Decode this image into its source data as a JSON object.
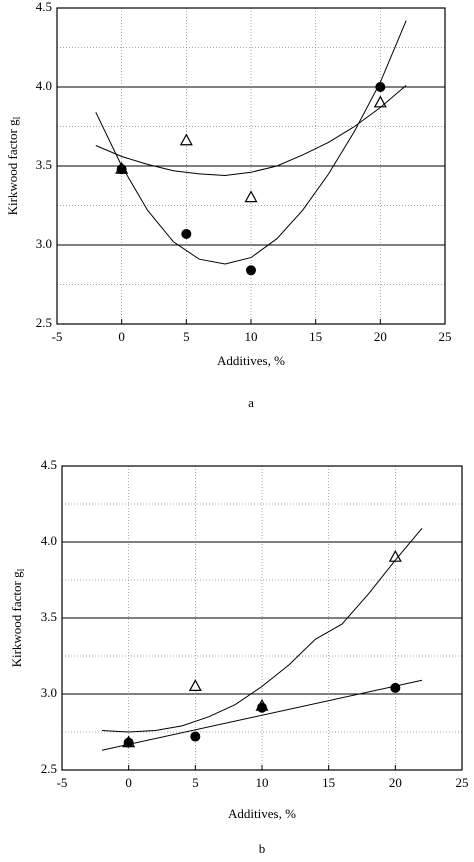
{
  "chart_data": [
    {
      "type": "scatter",
      "xlabel": "Additives, %",
      "ylabel": "Kirkwood factor g",
      "ylabel_sub": "l",
      "caption": "a",
      "xlim": [
        -5,
        25
      ],
      "xticks": [
        -5,
        0,
        5,
        10,
        15,
        20,
        25
      ],
      "ylim": [
        2.5,
        4.5
      ],
      "yticks": [
        2.5,
        {
          "value": 3,
          "label": "3.0"
        },
        3.5,
        {
          "value": 4,
          "label": "4.0"
        },
        4.5
      ],
      "grid": true,
      "series": [
        {
          "marker": "triangle",
          "color": "#000000",
          "x": [
            0,
            5,
            10,
            20
          ],
          "values": [
            3.48,
            3.66,
            3.3,
            3.9
          ]
        },
        {
          "marker": "circle",
          "color": "#000000",
          "x": [
            0,
            5,
            10,
            20
          ],
          "values": [
            3.48,
            3.07,
            2.84,
            4.0
          ]
        },
        {
          "marker": "line",
          "color": "#000000",
          "x": [
            -2,
            0,
            2,
            4,
            6,
            8,
            10,
            12,
            14,
            16,
            18,
            20,
            22
          ],
          "values": [
            3.84,
            3.5,
            3.22,
            3.02,
            2.91,
            2.88,
            2.92,
            3.04,
            3.22,
            3.45,
            3.72,
            4.03,
            4.42
          ]
        },
        {
          "marker": "line",
          "color": "#000000",
          "x": [
            -2,
            0,
            2,
            4,
            6,
            8,
            10,
            12,
            14,
            16,
            18,
            20,
            22
          ],
          "values": [
            3.63,
            3.56,
            3.51,
            3.47,
            3.45,
            3.44,
            3.46,
            3.5,
            3.57,
            3.65,
            3.75,
            3.87,
            4.01
          ]
        }
      ]
    },
    {
      "type": "scatter",
      "xlabel": "Additives, %",
      "ylabel": "Kirkwood factor g",
      "ylabel_sub": "l",
      "caption": "b",
      "xlim": [
        -5,
        25
      ],
      "xticks": [
        -5,
        0,
        5,
        10,
        15,
        20,
        25
      ],
      "ylim": [
        2.5,
        4.5
      ],
      "yticks": [
        2.5,
        {
          "value": 3,
          "label": "3.0"
        },
        3.5,
        {
          "value": 4,
          "label": "4.0"
        },
        4.5
      ],
      "grid": true,
      "series": [
        {
          "marker": "triangle",
          "color": "#000000",
          "x": [
            0,
            5,
            10,
            20
          ],
          "values": [
            2.68,
            3.05,
            2.92,
            3.9
          ]
        },
        {
          "marker": "circle",
          "color": "#000000",
          "x": [
            0,
            5,
            10,
            20
          ],
          "values": [
            2.68,
            2.72,
            2.91,
            3.04
          ]
        },
        {
          "marker": "line",
          "color": "#000000",
          "x": [
            -2,
            0,
            2,
            4,
            6,
            8,
            10,
            12,
            14,
            16,
            18,
            20,
            22
          ],
          "values": [
            2.76,
            2.75,
            2.76,
            2.79,
            2.85,
            2.93,
            3.05,
            3.19,
            3.36,
            3.46,
            3.66,
            3.88,
            4.09
          ]
        },
        {
          "marker": "line",
          "color": "#000000",
          "x": [
            -2,
            22
          ],
          "values": [
            2.63,
            3.09
          ]
        }
      ]
    }
  ]
}
